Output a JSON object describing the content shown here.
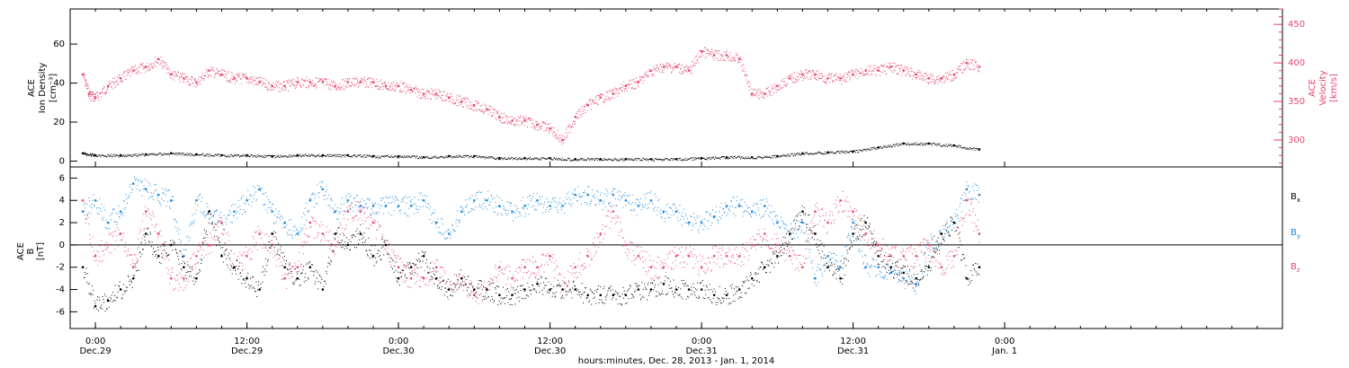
{
  "colors": {
    "black": "#000000",
    "pink": "#e8456e",
    "blue": "#1a86e0"
  },
  "xaxis": {
    "label": "hours:minutes, Dec. 28, 2013 - Jan.  1, 2014",
    "range_hours": [
      -2,
      94
    ],
    "ticks": [
      {
        "hour": 0,
        "time": "0:00",
        "date": "Dec.29"
      },
      {
        "hour": 12,
        "time": "12:00",
        "date": "Dec.29"
      },
      {
        "hour": 24,
        "time": "0:00",
        "date": "Dec.30"
      },
      {
        "hour": 36,
        "time": "12:00",
        "date": "Dec.30"
      },
      {
        "hour": 48,
        "time": "0:00",
        "date": "Dec.31"
      },
      {
        "hour": 60,
        "time": "12:00",
        "date": "Dec.31"
      },
      {
        "hour": 72,
        "time": "0:00",
        "date": "Jan. 1"
      }
    ]
  },
  "panel1": {
    "left_label": [
      "ACE",
      "Ion Density",
      "[cm⁻³]"
    ],
    "right_label": [
      "ACE",
      "Velocity",
      "[km/s]"
    ],
    "left_range": [
      -3,
      78
    ],
    "left_ticks": [
      0,
      20,
      40,
      60
    ],
    "right_range": [
      265,
      470
    ],
    "right_ticks": [
      300,
      350,
      400,
      450
    ]
  },
  "panel2": {
    "left_label": [
      "ACE",
      "B",
      "[nT]"
    ],
    "range": [
      -7.5,
      7.0
    ],
    "ticks": [
      -6,
      -4,
      -2,
      0,
      2,
      4,
      6
    ],
    "legend": [
      {
        "name": "B",
        "sub": "x",
        "color": "#000000"
      },
      {
        "name": "B",
        "sub": "y",
        "color": "#1a86e0"
      },
      {
        "name": "B",
        "sub": "z",
        "color": "#e8456e"
      }
    ]
  },
  "chart_data": [
    {
      "type": "scatter",
      "title": "",
      "xlabel": "hours:minutes, Dec. 28, 2013 - Jan.  1, 2014",
      "ylabel": "ACE Ion Density [cm⁻³]",
      "y2label": "ACE Velocity [km/s]",
      "series": [
        {
          "name": "Ion Density",
          "color": "#000000",
          "axis": "left",
          "x": [
            -1,
            0,
            2,
            4,
            6,
            8,
            10,
            12,
            14,
            16,
            18,
            20,
            22,
            24,
            26,
            28,
            30,
            32,
            34,
            36,
            38,
            40,
            42,
            44,
            46,
            48,
            50,
            52,
            54,
            56,
            58,
            60,
            62,
            64,
            66,
            68,
            70
          ],
          "y": [
            4,
            3,
            3,
            3.5,
            4,
            3.5,
            3,
            3,
            2.5,
            3,
            3,
            3,
            2.5,
            2.5,
            2,
            2.5,
            2.5,
            1.5,
            1.5,
            1.5,
            1,
            1,
            1,
            1,
            1,
            1.5,
            2,
            2,
            2.5,
            4,
            4.5,
            5,
            7,
            9,
            9,
            8,
            6
          ]
        },
        {
          "name": "Velocity",
          "color": "#e8456e",
          "axis": "right",
          "x": [
            -1,
            -0.5,
            0,
            1,
            2,
            3,
            4,
            5,
            6,
            7,
            8,
            9,
            10,
            11,
            12,
            13,
            14,
            15,
            16,
            17,
            18,
            19,
            20,
            21,
            22,
            23,
            24,
            25,
            26,
            27,
            28,
            29,
            30,
            31,
            32,
            33,
            34,
            35,
            36,
            37,
            38,
            39,
            40,
            41,
            42,
            43,
            44,
            45,
            46,
            47,
            48,
            49,
            50,
            51,
            52,
            53,
            54,
            55,
            56,
            57,
            58,
            59,
            60,
            61,
            62,
            63,
            64,
            65,
            66,
            67,
            68,
            69,
            70
          ],
          "y": [
            385,
            360,
            355,
            370,
            380,
            390,
            395,
            405,
            385,
            380,
            375,
            390,
            385,
            380,
            380,
            375,
            370,
            370,
            375,
            375,
            375,
            370,
            375,
            375,
            375,
            370,
            370,
            365,
            360,
            360,
            355,
            350,
            345,
            340,
            330,
            325,
            325,
            320,
            315,
            300,
            330,
            345,
            355,
            360,
            370,
            375,
            390,
            395,
            395,
            390,
            415,
            410,
            410,
            405,
            360,
            360,
            370,
            380,
            385,
            385,
            380,
            380,
            385,
            390,
            390,
            395,
            390,
            385,
            380,
            380,
            385,
            400,
            395
          ]
        }
      ]
    },
    {
      "type": "scatter",
      "title": "",
      "xlabel": "hours:minutes, Dec. 28, 2013 - Jan.  1, 2014",
      "ylabel": "ACE B [nT]",
      "series": [
        {
          "name": "Bx",
          "color": "#000000",
          "x": [
            -1,
            0,
            1,
            2,
            3,
            4,
            5,
            6,
            7,
            8,
            9,
            10,
            11,
            12,
            13,
            14,
            15,
            16,
            17,
            18,
            19,
            20,
            21,
            22,
            23,
            24,
            25,
            26,
            27,
            28,
            29,
            30,
            31,
            32,
            33,
            34,
            35,
            36,
            37,
            38,
            39,
            40,
            41,
            42,
            43,
            44,
            45,
            46,
            47,
            48,
            49,
            50,
            51,
            52,
            53,
            54,
            55,
            56,
            57,
            58,
            59,
            60,
            61,
            62,
            63,
            64,
            65,
            66,
            67,
            68,
            69,
            70
          ],
          "y": [
            -2,
            -5.5,
            -5,
            -4,
            -3,
            1,
            -1,
            0,
            -2,
            -3,
            3,
            -1,
            -2,
            -3,
            -4,
            1,
            -2,
            -3,
            -2,
            -4,
            1,
            0,
            1,
            -1,
            0,
            -3,
            -2,
            -1,
            -3,
            -4,
            -3,
            -4,
            -4,
            -4.5,
            -4.5,
            -4,
            -3.5,
            -4,
            -4,
            -4,
            -4.5,
            -4.5,
            -4.5,
            -4.5,
            -4,
            -4,
            -3.5,
            -4,
            -4,
            -4,
            -4.5,
            -4.5,
            -4,
            -3,
            -2,
            -1,
            1,
            3,
            1,
            -2,
            -3,
            1,
            2,
            -1,
            -2,
            -2.5,
            -3,
            -2,
            1,
            2,
            -3,
            -2
          ]
        },
        {
          "name": "By",
          "color": "#1a86e0",
          "x": [
            -1,
            0,
            1,
            2,
            3,
            4,
            5,
            6,
            7,
            8,
            9,
            10,
            11,
            12,
            13,
            14,
            15,
            16,
            17,
            18,
            19,
            20,
            21,
            22,
            23,
            24,
            25,
            26,
            27,
            28,
            29,
            30,
            31,
            32,
            33,
            34,
            35,
            36,
            37,
            38,
            39,
            40,
            41,
            42,
            43,
            44,
            45,
            46,
            47,
            48,
            49,
            50,
            51,
            52,
            53,
            54,
            55,
            56,
            57,
            58,
            59,
            60,
            61,
            62,
            63,
            64,
            65,
            66,
            67,
            68,
            69,
            70
          ],
          "y": [
            3,
            4,
            2,
            3,
            5.5,
            5,
            4.5,
            4,
            -1,
            4,
            3,
            2,
            3,
            4,
            5,
            3,
            2,
            1,
            4,
            5,
            3,
            4,
            3.5,
            3.5,
            3.5,
            3.5,
            3.5,
            4,
            2,
            1,
            3,
            4,
            4,
            3.5,
            3,
            3.5,
            4,
            3.5,
            3.5,
            4.5,
            4.5,
            4,
            4.5,
            4,
            3.5,
            4,
            3,
            3,
            2,
            2,
            2.5,
            3.5,
            3.5,
            3,
            3.5,
            2,
            1,
            2,
            -3,
            -1,
            -2,
            2,
            -2,
            -2,
            -2.5,
            -3,
            -3.5,
            0,
            1,
            2,
            5,
            4.5
          ]
        },
        {
          "name": "Bz",
          "color": "#e8456e",
          "x": [
            -1,
            0,
            1,
            2,
            3,
            4,
            5,
            6,
            7,
            8,
            9,
            10,
            11,
            12,
            13,
            14,
            15,
            16,
            17,
            18,
            19,
            20,
            21,
            22,
            23,
            24,
            25,
            26,
            27,
            28,
            29,
            30,
            31,
            32,
            33,
            34,
            35,
            36,
            37,
            38,
            39,
            40,
            41,
            42,
            43,
            44,
            45,
            46,
            47,
            48,
            49,
            50,
            51,
            52,
            53,
            54,
            55,
            56,
            57,
            58,
            59,
            60,
            61,
            62,
            63,
            64,
            65,
            66,
            67,
            68,
            69,
            70
          ],
          "y": [
            4,
            -1,
            0,
            1,
            -2,
            3,
            1,
            -3,
            -3,
            -1,
            0,
            2,
            -2,
            -1,
            1,
            0,
            -3,
            -2,
            2,
            1,
            0,
            3,
            3,
            2,
            0,
            -2,
            -3,
            -3,
            -2,
            -4,
            -3,
            -4.5,
            -4,
            -2,
            -3,
            -2,
            -2,
            -1,
            -4,
            -2,
            -1,
            1,
            3,
            0,
            -1,
            -2,
            -2,
            -1,
            -1,
            -2,
            -1,
            -1,
            -1,
            0,
            1,
            0,
            -1,
            -2,
            3,
            2,
            4,
            3,
            1,
            0,
            -1,
            -1,
            -1,
            0,
            -2,
            -1,
            4,
            1
          ]
        }
      ]
    }
  ]
}
